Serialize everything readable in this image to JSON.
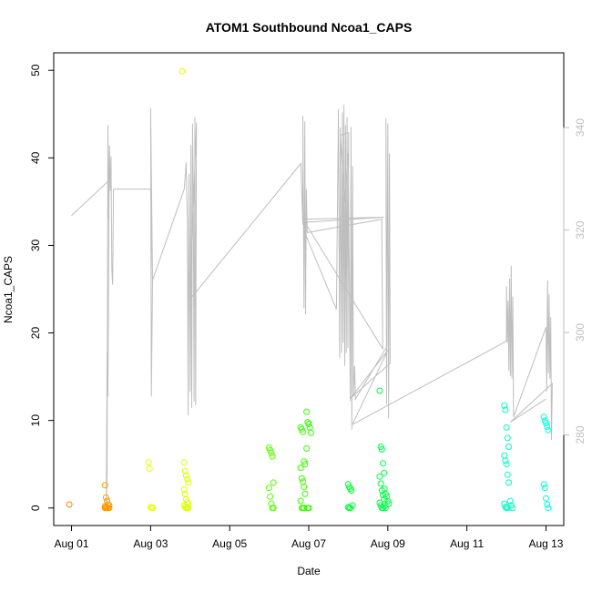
{
  "chart_data": {
    "type": "scatter",
    "title": "ATOM1 Southbound Ncoa1_CAPS",
    "xlabel": "Date",
    "ylabel": "Ncoa1_CAPS",
    "x_unit": "days since Aug 01",
    "xlim": [
      -0.45,
      12.45
    ],
    "ylim": [
      -2,
      52
    ],
    "x_ticks": [
      {
        "value": 0,
        "label": "Aug 01"
      },
      {
        "value": 2,
        "label": "Aug 03"
      },
      {
        "value": 4,
        "label": "Aug 05"
      },
      {
        "value": 6,
        "label": "Aug 07"
      },
      {
        "value": 8,
        "label": "Aug 09"
      },
      {
        "value": 10,
        "label": "Aug 11"
      },
      {
        "value": 12,
        "label": "Aug 13"
      }
    ],
    "y_ticks": [
      0,
      10,
      20,
      30,
      40,
      50
    ],
    "y2_ticks": [
      280,
      300,
      320,
      340
    ],
    "y2lim": [
      262.3,
      354.6
    ],
    "point_groups": [
      {
        "x": 0.0,
        "color": "#FF8000",
        "values": [
          0.4
        ]
      },
      {
        "x": 0.9,
        "color": "#FF9900",
        "values": [
          2.6,
          1.2,
          0.8,
          0.4,
          0.3,
          0.2,
          0.1,
          0.05,
          0,
          0,
          0,
          0
        ]
      },
      {
        "x": 2.0,
        "color": "#E6FF00",
        "values": [
          5.2,
          4.5,
          0.1,
          0,
          0
        ]
      },
      {
        "x": 2.85,
        "color": "#DDFF00",
        "values": [
          49.9
        ]
      },
      {
        "x": 2.9,
        "color": "#DDFF00",
        "values": [
          5.2,
          4.2,
          3.7,
          3.3,
          2.9,
          2.1,
          1.6,
          1.0,
          0.7,
          0.5,
          0.3,
          0.1,
          0,
          0,
          0
        ]
      },
      {
        "x": 5.05,
        "color": "#55FF00",
        "values": [
          6.9,
          6.6,
          6.3,
          5.9,
          2.9,
          2.3,
          1.3,
          0.5,
          0,
          0
        ]
      },
      {
        "x": 5.85,
        "color": "#3BFF00",
        "values": [
          9.2,
          9.0,
          8.7,
          5.3,
          5.0,
          4.6,
          3.4,
          3.0,
          2.4,
          1.6,
          0.8,
          0,
          0,
          0
        ]
      },
      {
        "x": 6.0,
        "color": "#33FF00",
        "values": [
          11.0,
          9.8,
          9.6,
          9.2,
          8.6,
          6.8,
          0,
          0
        ]
      },
      {
        "x": 7.05,
        "color": "#00FF33",
        "values": [
          2.7,
          2.4,
          2.2,
          2.0,
          0.3,
          0.1,
          0,
          0
        ]
      },
      {
        "x": 7.85,
        "color": "#00FF44",
        "values": [
          13.4,
          7.0,
          6.7,
          5.1,
          4.0,
          3.6,
          2.8,
          2.0,
          1.5,
          1.0,
          0.6,
          0.3,
          0,
          0
        ]
      },
      {
        "x": 7.97,
        "color": "#00FF44",
        "values": [
          2.2,
          1.6,
          1.3,
          0.8,
          0.5,
          0.2,
          0
        ]
      },
      {
        "x": 11.0,
        "color": "#00FFBF",
        "values": [
          11.7,
          11.2,
          9.2,
          8.0,
          7.0,
          6.0,
          5.4,
          5.0,
          3.8,
          2.9,
          0.5,
          0.1,
          0,
          0
        ]
      },
      {
        "x": 11.15,
        "color": "#00FFBF",
        "values": [
          0.8,
          0.3,
          0
        ]
      },
      {
        "x": 12.0,
        "color": "#00FFDD",
        "values": [
          10.4,
          10.0,
          9.7,
          9.3,
          8.9,
          2.7,
          2.3,
          1.1,
          0.4,
          0
        ]
      }
    ],
    "secondary_series": {
      "name": "secondary axis trace",
      "color": "#BEBEBE",
      "points": [
        [
          0.0,
          322.8
        ],
        [
          0.95,
          329.7
        ],
        [
          0.92,
          287.5
        ],
        [
          0.9,
          296.1
        ],
        [
          0.88,
          266.1
        ],
        [
          0.9,
          272.4
        ],
        [
          0.92,
          340.5
        ],
        [
          0.94,
          322.1
        ],
        [
          0.96,
          336.5
        ],
        [
          0.98,
          327.6
        ],
        [
          1.0,
          334.4
        ],
        [
          1.02,
          312.2
        ],
        [
          1.04,
          309.3
        ],
        [
          1.06,
          328.0
        ],
        [
          2.0,
          328.0
        ],
        [
          2.05,
          310.0
        ],
        [
          2.0,
          343.8
        ],
        [
          2.02,
          287.5
        ],
        [
          2.05,
          310.2
        ],
        [
          2.85,
          328.0
        ],
        [
          2.9,
          333.2
        ],
        [
          2.93,
          322.2
        ],
        [
          2.95,
          283.8
        ],
        [
          2.97,
          331.0
        ],
        [
          3.0,
          288.4
        ],
        [
          3.02,
          336.6
        ],
        [
          3.04,
          285.3
        ],
        [
          3.06,
          340.8
        ],
        [
          3.08,
          329.0
        ],
        [
          3.1,
          286.5
        ],
        [
          3.12,
          342.0
        ],
        [
          3.14,
          285.8
        ],
        [
          3.16,
          341.0
        ],
        [
          3.0,
          306.5
        ],
        [
          5.8,
          333.0
        ],
        [
          5.85,
          321.0
        ],
        [
          5.85,
          342.3
        ],
        [
          5.88,
          304.7
        ],
        [
          5.9,
          341.2
        ],
        [
          5.92,
          303.5
        ],
        [
          5.94,
          328.0
        ],
        [
          5.96,
          319.5
        ],
        [
          7.85,
          322.1
        ],
        [
          7.85,
          318.0
        ],
        [
          7.87,
          296.8
        ],
        [
          5.9,
          321.5
        ],
        [
          7.9,
          322.5
        ],
        [
          5.85,
          322.1
        ],
        [
          5.9,
          319.5
        ],
        [
          6.7,
          304.5
        ],
        [
          6.75,
          343.6
        ],
        [
          6.78,
          295.1
        ],
        [
          6.8,
          340.0
        ],
        [
          6.83,
          296.0
        ],
        [
          6.85,
          343.0
        ],
        [
          6.87,
          298.0
        ],
        [
          6.89,
          344.5
        ],
        [
          6.91,
          293.5
        ],
        [
          6.93,
          340.5
        ],
        [
          6.95,
          296.0
        ],
        [
          6.97,
          342.0
        ],
        [
          6.99,
          297.0
        ],
        [
          7.01,
          339.0
        ],
        [
          6.8,
          338.5
        ],
        [
          6.9,
          325.5
        ],
        [
          7.0,
          335.0
        ],
        [
          7.05,
          286.6
        ],
        [
          7.07,
          340.1
        ],
        [
          7.09,
          281.0
        ],
        [
          7.11,
          332.5
        ],
        [
          7.13,
          287.8
        ],
        [
          7.16,
          293.5
        ],
        [
          7.18,
          287.0
        ],
        [
          7.98,
          297.3
        ],
        [
          7.95,
          341.8
        ],
        [
          7.97,
          286.0
        ],
        [
          8.0,
          340.8
        ],
        [
          8.02,
          283.2
        ],
        [
          8.04,
          335.0
        ],
        [
          8.06,
          294.0
        ],
        [
          7.05,
          287.1
        ],
        [
          8.0,
          296.5
        ],
        [
          7.1,
          282.0
        ],
        [
          11.0,
          298.3
        ],
        [
          11.0,
          309.0
        ],
        [
          11.02,
          298.0
        ],
        [
          11.04,
          306.2
        ],
        [
          11.06,
          292.5
        ],
        [
          11.08,
          310.5
        ],
        [
          11.1,
          291.5
        ],
        [
          11.12,
          313.0
        ],
        [
          11.14,
          291.0
        ],
        [
          11.16,
          307.0
        ],
        [
          11.18,
          283.5
        ],
        [
          12.0,
          301.0
        ],
        [
          12.02,
          288.5
        ],
        [
          12.04,
          310.2
        ],
        [
          12.06,
          292.0
        ],
        [
          12.08,
          307.5
        ],
        [
          12.1,
          291.0
        ],
        [
          12.12,
          303.0
        ],
        [
          12.14,
          279.0
        ],
        [
          12.16,
          290.0
        ],
        [
          11.1,
          282.5
        ],
        [
          12.0,
          287.0
        ]
      ]
    }
  }
}
